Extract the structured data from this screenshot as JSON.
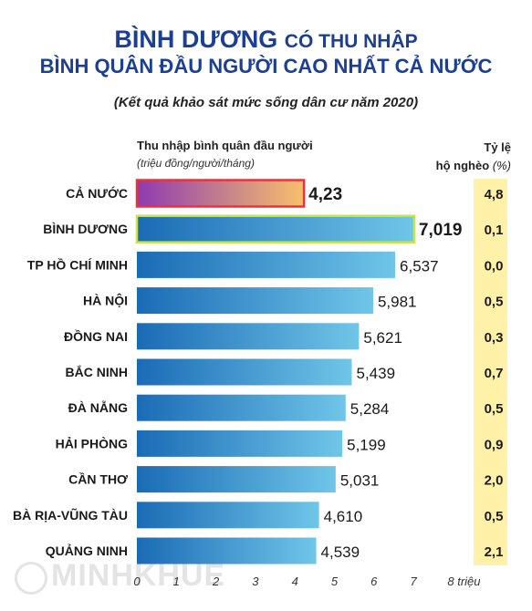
{
  "title": {
    "line1_main": "BÌNH DƯƠNG",
    "line1_rest": "CÓ THU NHẬP",
    "line2": "BÌNH QUÂN ĐẦU NGƯỜI CAO NHẤT CẢ NƯỚC",
    "subtitle": "(Kết quả khảo sát mức sống dân cư năm 2020)"
  },
  "headers": {
    "income_label": "Thu nhập bình quân đầu người",
    "income_unit": "(triệu đồng/người/tháng)",
    "rate_label": "Tỷ lệ",
    "rate_label2": "hộ nghèo",
    "rate_unit": "(%)"
  },
  "watermark": "MINHKHUE",
  "colors": {
    "title": "#1b3f95",
    "bar_gradient_dark": "#1a6bb5",
    "bar_gradient_light": "#6fc6e8",
    "highlight_border": "#c8e63c",
    "national_gradient_start": "#8e3ab0",
    "national_gradient_end": "#f7c16a",
    "national_border": "#e8333d",
    "poverty_bg": "#fff2a8"
  },
  "chart_data": {
    "type": "bar",
    "orientation": "horizontal",
    "categories": [
      "CẢ NƯỚC",
      "BÌNH DƯƠNG",
      "TP HỒ CHÍ MINH",
      "HÀ NỘI",
      "ĐỒNG NAI",
      "BẮC NINH",
      "ĐÀ NẴNG",
      "HẢI PHÒNG",
      "CẦN THƠ",
      "BÀ RỊA-VŨNG TÀU",
      "QUẢNG NINH"
    ],
    "values": [
      4.23,
      7.019,
      6.537,
      5.981,
      5.621,
      5.439,
      5.284,
      5.199,
      5.031,
      4.61,
      4.539
    ],
    "value_labels": [
      "4,23",
      "7,019",
      "6,537",
      "5,981",
      "5,621",
      "5,439",
      "5,284",
      "5,199",
      "5,031",
      "4,610",
      "4,539"
    ],
    "poverty_rate": [
      "4,8",
      "0,1",
      "0,0",
      "0,5",
      "0,3",
      "0,7",
      "0,5",
      "0,9",
      "2,0",
      "0,5",
      "2,1"
    ],
    "x_ticks": [
      "0",
      "1",
      "2",
      "3",
      "4",
      "5",
      "6",
      "7",
      "8 triệu"
    ],
    "xlim": [
      0,
      8
    ],
    "grid": false,
    "legend": "none"
  }
}
